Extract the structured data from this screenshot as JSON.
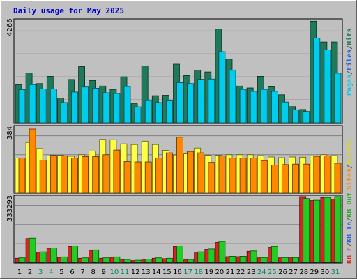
{
  "chart_data": {
    "type": "bar",
    "title": "Daily usage for May 2025",
    "x": [
      "1",
      "2",
      "3",
      "4",
      "5",
      "6",
      "7",
      "8",
      "9",
      "10",
      "11",
      "12",
      "13",
      "14",
      "15",
      "16",
      "17",
      "18",
      "19",
      "20",
      "21",
      "22",
      "23",
      "24",
      "25",
      "26",
      "27",
      "28",
      "29",
      "30",
      "31"
    ],
    "weekend_days": [
      "3",
      "4",
      "10",
      "11",
      "17",
      "18",
      "24",
      "25",
      "31"
    ],
    "panels": [
      {
        "id": "hits",
        "ytick_label": "4266",
        "ymax": 4266,
        "series": [
          {
            "name": "Hits",
            "color": "#1e7a5a",
            "values": [
              1570,
              2060,
              1620,
              1920,
              1020,
              1790,
              2320,
              1750,
              1520,
              1380,
              1900,
              790,
              2350,
              1120,
              1140,
              2420,
              1950,
              2180,
              2100,
              3870,
              2630,
              1520,
              1440,
              1920,
              1490,
              1160,
              670,
              550,
              4200,
              3340,
              3340
            ]
          },
          {
            "name": "Files",
            "color": "#2a60d8",
            "values": [
              0,
              0,
              0,
              0,
              0,
              0,
              0,
              0,
              0,
              0,
              0,
              0,
              0,
              0,
              0,
              0,
              0,
              0,
              0,
              0,
              0,
              0,
              0,
              0,
              0,
              0,
              0,
              0,
              0,
              0,
              0
            ]
          },
          {
            "name": "Pages",
            "color": "#00ccee",
            "values": [
              1370,
              1580,
              1400,
              1400,
              840,
              1270,
              1480,
              1430,
              1240,
              1210,
              1500,
              660,
              920,
              840,
              910,
              1660,
              1620,
              1800,
              1810,
              2940,
              2170,
              1380,
              1300,
              1380,
              1300,
              860,
              540,
              470,
              3500,
              3010,
              2050
            ]
          }
        ]
      },
      {
        "id": "visits",
        "ytick_label": "384",
        "ymax": 384,
        "series": [
          {
            "name": "Visits",
            "color": "#ffff44",
            "values": [
              200,
              290,
              255,
              212,
              216,
              210,
              219,
              240,
              308,
              306,
              282,
              278,
              298,
              278,
              245,
              218,
              224,
              258,
              216,
              216,
              219,
              219,
              219,
              214,
              206,
              202,
              206,
              205,
              212,
              219,
              214
            ]
          },
          {
            "name": "Sites",
            "color": "#ff8800",
            "values": [
              200,
              368,
              188,
              216,
              213,
              200,
              208,
              208,
              219,
              246,
              180,
              178,
              178,
              200,
              230,
              320,
              238,
              230,
              175,
              212,
              200,
              200,
              200,
              185,
              160,
              162,
              165,
              165,
              210,
              212,
              170
            ]
          }
        ]
      },
      {
        "id": "kbytes",
        "ytick_label": "333293",
        "ymax": 333293,
        "series": [
          {
            "name": "KB F",
            "color": "#e02020",
            "values": [
              20000,
              120000,
              50000,
              70000,
              25000,
              80000,
              20000,
              60000,
              20000,
              25000,
              12000,
              8000,
              14000,
              20000,
              18000,
              80000,
              12000,
              50000,
              65000,
              100000,
              28000,
              28000,
              55000,
              22000,
              75000,
              22000,
              22000,
              330000,
              310000,
              325000,
              318000
            ]
          },
          {
            "name": "KB In",
            "color": "#2a60d8",
            "values": [
              0,
              0,
              0,
              0,
              0,
              0,
              0,
              0,
              0,
              0,
              0,
              0,
              0,
              0,
              0,
              0,
              0,
              0,
              0,
              0,
              0,
              0,
              0,
              0,
              0,
              0,
              0,
              0,
              0,
              0,
              0
            ]
          },
          {
            "name": "KB Out",
            "color": "#22cc22",
            "values": [
              22000,
              122000,
              52000,
              72000,
              27000,
              82000,
              22000,
              62000,
              22000,
              27000,
              14000,
              10000,
              16000,
              22000,
              20000,
              82000,
              14000,
              52000,
              67000,
              105000,
              30000,
              30000,
              57000,
              24000,
              80000,
              24000,
              24000,
              320000,
              312000,
              326000,
              330000
            ]
          }
        ]
      }
    ],
    "legends": {
      "hits": [
        {
          "text": "Pages",
          "color": "#00c8e8"
        },
        {
          "text": "/",
          "color": "#505050"
        },
        {
          "text": "Files",
          "color": "#2a60d8"
        },
        {
          "text": "/",
          "color": "#505050"
        },
        {
          "text": "Hits",
          "color": "#1e7a5a"
        }
      ],
      "visits": [
        {
          "text": "Sites",
          "color": "#ff8800"
        },
        {
          "text": "/",
          "color": "#505050"
        },
        {
          "text": "Visits",
          "color": "#dddd00"
        }
      ],
      "kbytes": [
        {
          "text": "KB F",
          "color": "#e02020"
        },
        {
          "text": "/",
          "color": "#505050"
        },
        {
          "text": "KB In",
          "color": "#2a60d8"
        },
        {
          "text": "/",
          "color": "#505050"
        },
        {
          "text": "KB Out",
          "color": "#22aa22"
        }
      ]
    },
    "colors": {
      "title": "#0000cc",
      "background": "#c0c0c0",
      "plot": "#c0c0c0",
      "gridline": "#808080",
      "weekday_label": "#000000",
      "weekend_label": "#008866"
    }
  }
}
